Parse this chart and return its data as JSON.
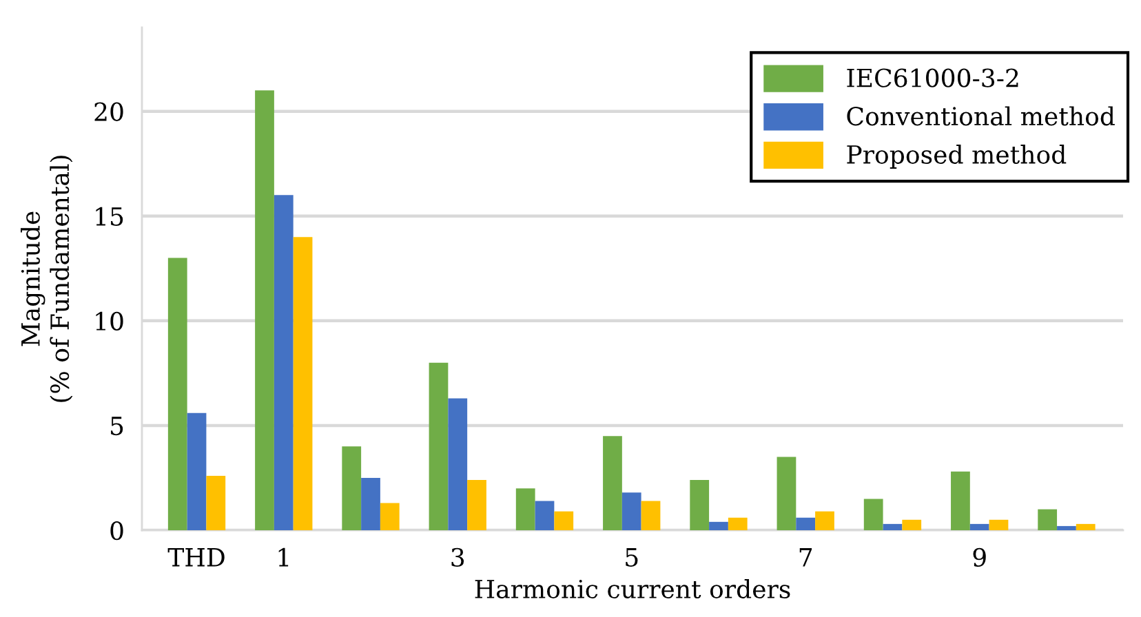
{
  "chart_data": {
    "type": "bar",
    "xlabel": "Harmonic current orders",
    "ylabel": "Magnitude\n(% of Fundamental)",
    "categories": [
      "THD",
      "1",
      null,
      "3",
      null,
      "5",
      null,
      "7",
      null,
      "9",
      null
    ],
    "series": [
      {
        "name": "IEC61000-3-2",
        "color": "#70ad47",
        "values": [
          13.0,
          21.0,
          4.0,
          8.0,
          2.0,
          4.5,
          2.4,
          3.5,
          1.5,
          2.8,
          1.0
        ]
      },
      {
        "name": "Conventional method",
        "color": "#4472c4",
        "values": [
          5.6,
          16.0,
          2.5,
          6.3,
          1.4,
          1.8,
          0.4,
          0.6,
          0.3,
          0.3,
          0.2
        ]
      },
      {
        "name": "Proposed method",
        "color": "#ffc000",
        "values": [
          2.6,
          14.0,
          1.3,
          2.4,
          0.9,
          1.4,
          0.6,
          0.9,
          0.5,
          0.5,
          0.3
        ]
      }
    ],
    "ylim": [
      0,
      24
    ],
    "yticks": [
      0,
      5,
      10,
      15,
      20
    ],
    "grid": "y",
    "legend": "top right"
  }
}
